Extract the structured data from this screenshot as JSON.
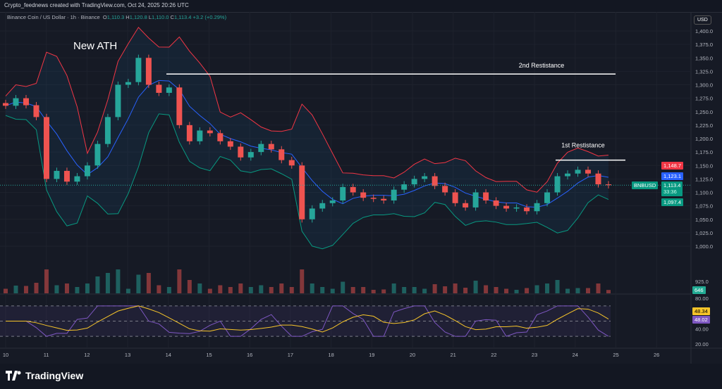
{
  "credit": "Crypto_feednews created with TradingView.com, Oct 24, 2025 20:26 UTC",
  "legend": {
    "symbol": "Binance Coin / US Dollar · 1h · Binance",
    "o": "1,110.3",
    "h": "1,120.8",
    "l": "1,110.0",
    "c": "1,113.4",
    "chg": "+3.2 (+0.29%)"
  },
  "currency": "USD",
  "annotations": {
    "ath": "New ATH",
    "r2": "2nd Restistance",
    "r1": "1st Restistance"
  },
  "tags": {
    "upper": "1,148.7",
    "basis": "1,123.1",
    "price": "1,113.4",
    "countdown": "33:36",
    "lower": "1,097.4",
    "symbol": "BNBUSD",
    "volume": "646",
    "rsi": "48.34",
    "rsi_ma": "48.02",
    "vol_axis": "925.0"
  },
  "footer": {
    "brand": "TradingView"
  },
  "colors": {
    "up": "#26a69a",
    "down": "#ef5350",
    "upper": "#f23645",
    "basis": "#2962ff",
    "lower": "#089981",
    "rsi": "#7e57c2",
    "rsi_ma": "#f7c52a"
  },
  "chart_data": {
    "type": "candlestick",
    "interval_note": "1h",
    "y_ticks": [
      1000,
      1025,
      1050,
      1075,
      1100,
      1125,
      1150,
      1175,
      1200,
      1225,
      1250,
      1275,
      1300,
      1325,
      1350,
      1375,
      1400
    ],
    "ylim": [
      1000,
      1400
    ],
    "x_ticks": [
      "10",
      "11",
      "12",
      "13",
      "14",
      "15",
      "16",
      "17",
      "18",
      "19",
      "20",
      "21",
      "22",
      "23",
      "24",
      "25",
      "26"
    ],
    "closes": [
      1261,
      1275,
      1262,
      1240,
      1125,
      1140,
      1120,
      1130,
      1150,
      1190,
      1240,
      1300,
      1305,
      1350,
      1300,
      1285,
      1295,
      1225,
      1195,
      1215,
      1210,
      1195,
      1185,
      1165,
      1175,
      1190,
      1180,
      1160,
      1150,
      1050,
      1070,
      1080,
      1085,
      1110,
      1100,
      1090,
      1088,
      1085,
      1105,
      1115,
      1125,
      1130,
      1112,
      1100,
      1080,
      1072,
      1100,
      1085,
      1075,
      1070,
      1072,
      1065,
      1080,
      1100,
      1130,
      1135,
      1142,
      1135,
      1115,
      1113.4
    ],
    "resistance": [
      {
        "label": "2nd Restistance",
        "price": 1320
      },
      {
        "label": "1st Restistance",
        "price": 1160
      }
    ],
    "rsi_ticks": [
      80,
      40,
      20
    ],
    "rsi_levels": [
      70,
      50,
      30
    ]
  }
}
